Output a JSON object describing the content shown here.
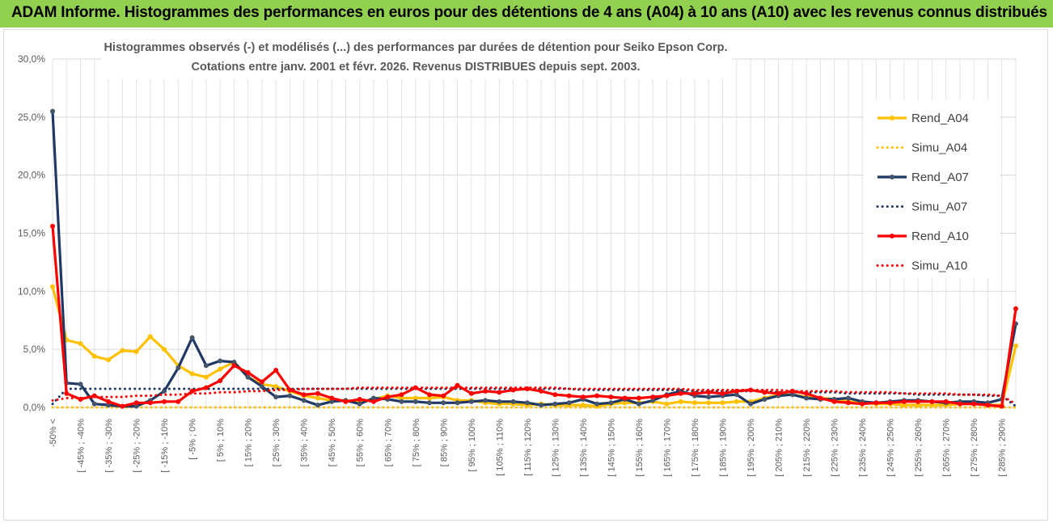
{
  "banner": {
    "title": "ADAM Informe. Histogrammes des performances en euros pour des détentions de 4 ans (A04) à 10 ans (A10) avec les revenus connus distribués"
  },
  "colors": {
    "banner": "#92d050",
    "a04": "#ffc000",
    "a07": "#1f3864",
    "a10": "#ff0000"
  },
  "chart_data": {
    "type": "line",
    "title_lines": [
      "Histogrammes observés (-) et modélisés (...) des performances par durées de détention pour Seiko Epson Corp.",
      "Cotations entre janv. 2001 et févr. 2026. Revenus DISTRIBUES depuis sept. 2003."
    ],
    "ylim": [
      0,
      30
    ],
    "yticks": [
      "0,0%",
      "5,0%",
      "10,0%",
      "15,0%",
      "20,0%",
      "25,0%",
      "30,0%"
    ],
    "x_labels": [
      "-50% <",
      "[ -45% ; -40%",
      "[ -35% ; -30%",
      "[ -25% ; -20%",
      "[ -15% ; -10%",
      "[ -5% ; 0%",
      "[ 5% ; 10%",
      "[ 15% ; 20%",
      "[ 25% ; 30%",
      "[ 35% ; 40%",
      "[ 45% ; 50%",
      "[ 55% ; 60%",
      "[ 65% ; 70%",
      "[ 75% ; 80%",
      "[ 85% ; 90%",
      "[ 95% ; 100%",
      "[ 105% ; 110%",
      "[ 115% ; 120%",
      "[ 125% ; 130%",
      "[ 135% ; 140%",
      "[ 145% ; 150%",
      "[ 155% ; 160%",
      "[ 165% ; 170%",
      "[ 175% ; 180%",
      "[ 185% ; 190%",
      "[ 195% ; 200%",
      "[ 205% ; 210%",
      "[ 215% ; 220%",
      "[ 225% ; 230%",
      "[ 235% ; 240%",
      "[ 245% ; 250%",
      "[ 255% ; 260%",
      "[ 265% ; 270%",
      "[ 275% ; 280%",
      "[ 285% ; 290%"
    ],
    "n_categories": 70,
    "series": [
      {
        "name": "Rend_A04",
        "style": "solid",
        "color": "#ffc000",
        "values": [
          10.4,
          5.8,
          5.5,
          4.4,
          4.1,
          4.9,
          4.8,
          6.1,
          5.0,
          3.6,
          2.9,
          2.6,
          3.3,
          3.9,
          2.6,
          2.0,
          1.8,
          1.4,
          1.0,
          0.8,
          0.6,
          0.6,
          0.5,
          0.7,
          1.0,
          0.8,
          0.8,
          0.8,
          0.9,
          0.6,
          0.6,
          0.4,
          0.3,
          0.3,
          0.2,
          0.3,
          0.2,
          0.2,
          0.2,
          0.1,
          0.3,
          0.4,
          0.4,
          0.5,
          0.3,
          0.5,
          0.4,
          0.4,
          0.4,
          0.5,
          0.5,
          0.8,
          1.1,
          1.1,
          0.9,
          0.8,
          0.7,
          0.5,
          0.4,
          0.3,
          0.3,
          0.2,
          0.2,
          0.2,
          0.2,
          0.3,
          0.3,
          0.2,
          0.2,
          5.3
        ]
      },
      {
        "name": "Simu_A04",
        "style": "dotted",
        "color": "#ffc000",
        "values": [
          0.0,
          0.0,
          0.0,
          0.0,
          0.0,
          0.0,
          0.0,
          0.0,
          0.0,
          0.0,
          0.0,
          0.0,
          0.0,
          0.0,
          0.0,
          0.0,
          0.0,
          0.0,
          0.0,
          0.0,
          0.0,
          0.0,
          0.0,
          0.0,
          0.0,
          0.0,
          0.0,
          0.0,
          0.0,
          0.0,
          0.0,
          0.0,
          0.0,
          0.0,
          0.0,
          0.0,
          0.0,
          0.0,
          0.0,
          0.0,
          0.0,
          0.0,
          0.0,
          0.0,
          0.0,
          0.0,
          0.0,
          0.0,
          0.0,
          0.0,
          0.0,
          0.0,
          0.0,
          0.0,
          0.0,
          0.0,
          0.0,
          0.0,
          0.0,
          0.0,
          0.0,
          0.0,
          0.0,
          0.0,
          0.0,
          0.0,
          0.0,
          0.0,
          0.0,
          0.0
        ]
      },
      {
        "name": "Rend_A07",
        "style": "solid",
        "color": "#1f3864",
        "values": [
          25.5,
          2.1,
          2.0,
          0.3,
          0.2,
          0.1,
          0.1,
          0.6,
          1.4,
          3.4,
          6.0,
          3.6,
          4.0,
          3.9,
          2.6,
          1.8,
          0.9,
          1.0,
          0.6,
          0.2,
          0.5,
          0.6,
          0.3,
          0.8,
          0.7,
          0.5,
          0.5,
          0.4,
          0.4,
          0.4,
          0.5,
          0.6,
          0.5,
          0.5,
          0.4,
          0.2,
          0.3,
          0.4,
          0.7,
          0.3,
          0.4,
          0.7,
          0.3,
          0.6,
          1.1,
          1.4,
          1.0,
          0.9,
          1.0,
          1.1,
          0.3,
          0.7,
          1.0,
          1.1,
          0.8,
          0.7,
          0.7,
          0.8,
          0.5,
          0.4,
          0.5,
          0.6,
          0.6,
          0.5,
          0.4,
          0.5,
          0.5,
          0.4,
          0.7,
          7.2
        ]
      },
      {
        "name": "Simu_A07",
        "style": "dotted",
        "color": "#1f3864",
        "values": [
          0.3,
          1.6,
          1.6,
          1.6,
          1.6,
          1.6,
          1.6,
          1.6,
          1.6,
          1.6,
          1.6,
          1.6,
          1.6,
          1.6,
          1.6,
          1.6,
          1.6,
          1.6,
          1.6,
          1.6,
          1.6,
          1.6,
          1.6,
          1.6,
          1.6,
          1.6,
          1.6,
          1.6,
          1.6,
          1.6,
          1.6,
          1.6,
          1.6,
          1.6,
          1.6,
          1.6,
          1.6,
          1.6,
          1.5,
          1.5,
          1.5,
          1.5,
          1.5,
          1.5,
          1.5,
          1.5,
          1.4,
          1.4,
          1.4,
          1.4,
          1.4,
          1.4,
          1.3,
          1.3,
          1.3,
          1.3,
          1.3,
          1.2,
          1.2,
          1.2,
          1.2,
          1.2,
          1.1,
          1.1,
          1.1,
          1.1,
          1.1,
          1.0,
          1.0,
          0.1
        ]
      },
      {
        "name": "Rend_A10",
        "style": "solid",
        "color": "#ff0000",
        "values": [
          15.6,
          1.2,
          0.7,
          1.0,
          0.5,
          0.1,
          0.4,
          0.4,
          0.5,
          0.5,
          1.4,
          1.7,
          2.3,
          3.6,
          3.0,
          2.2,
          3.2,
          1.5,
          1.1,
          1.2,
          0.8,
          0.5,
          0.7,
          0.5,
          0.9,
          1.1,
          1.7,
          1.1,
          1.0,
          1.9,
          1.2,
          1.4,
          1.3,
          1.5,
          1.6,
          1.4,
          1.1,
          1.0,
          0.9,
          1.0,
          0.9,
          0.8,
          0.8,
          0.9,
          1.0,
          1.2,
          1.2,
          1.3,
          1.2,
          1.4,
          1.5,
          1.3,
          1.2,
          1.4,
          1.2,
          0.8,
          0.5,
          0.4,
          0.3,
          0.4,
          0.4,
          0.5,
          0.5,
          0.5,
          0.5,
          0.3,
          0.3,
          0.2,
          0.1,
          8.5
        ]
      },
      {
        "name": "Simu_A10",
        "style": "dotted",
        "color": "#ff0000",
        "values": [
          0.6,
          0.8,
          0.8,
          0.9,
          0.9,
          0.9,
          1.0,
          1.0,
          1.1,
          1.1,
          1.2,
          1.2,
          1.3,
          1.3,
          1.4,
          1.4,
          1.5,
          1.5,
          1.6,
          1.6,
          1.6,
          1.6,
          1.7,
          1.7,
          1.7,
          1.7,
          1.7,
          1.7,
          1.7,
          1.7,
          1.7,
          1.7,
          1.7,
          1.7,
          1.7,
          1.7,
          1.7,
          1.6,
          1.6,
          1.6,
          1.6,
          1.6,
          1.6,
          1.6,
          1.6,
          1.6,
          1.5,
          1.5,
          1.5,
          1.5,
          1.5,
          1.5,
          1.5,
          1.4,
          1.4,
          1.4,
          1.4,
          1.3,
          1.3,
          1.3,
          1.3,
          1.2,
          1.2,
          1.2,
          1.2,
          1.1,
          1.1,
          1.1,
          1.0,
          0.3
        ]
      }
    ],
    "legend_position": "right",
    "grid": true
  }
}
